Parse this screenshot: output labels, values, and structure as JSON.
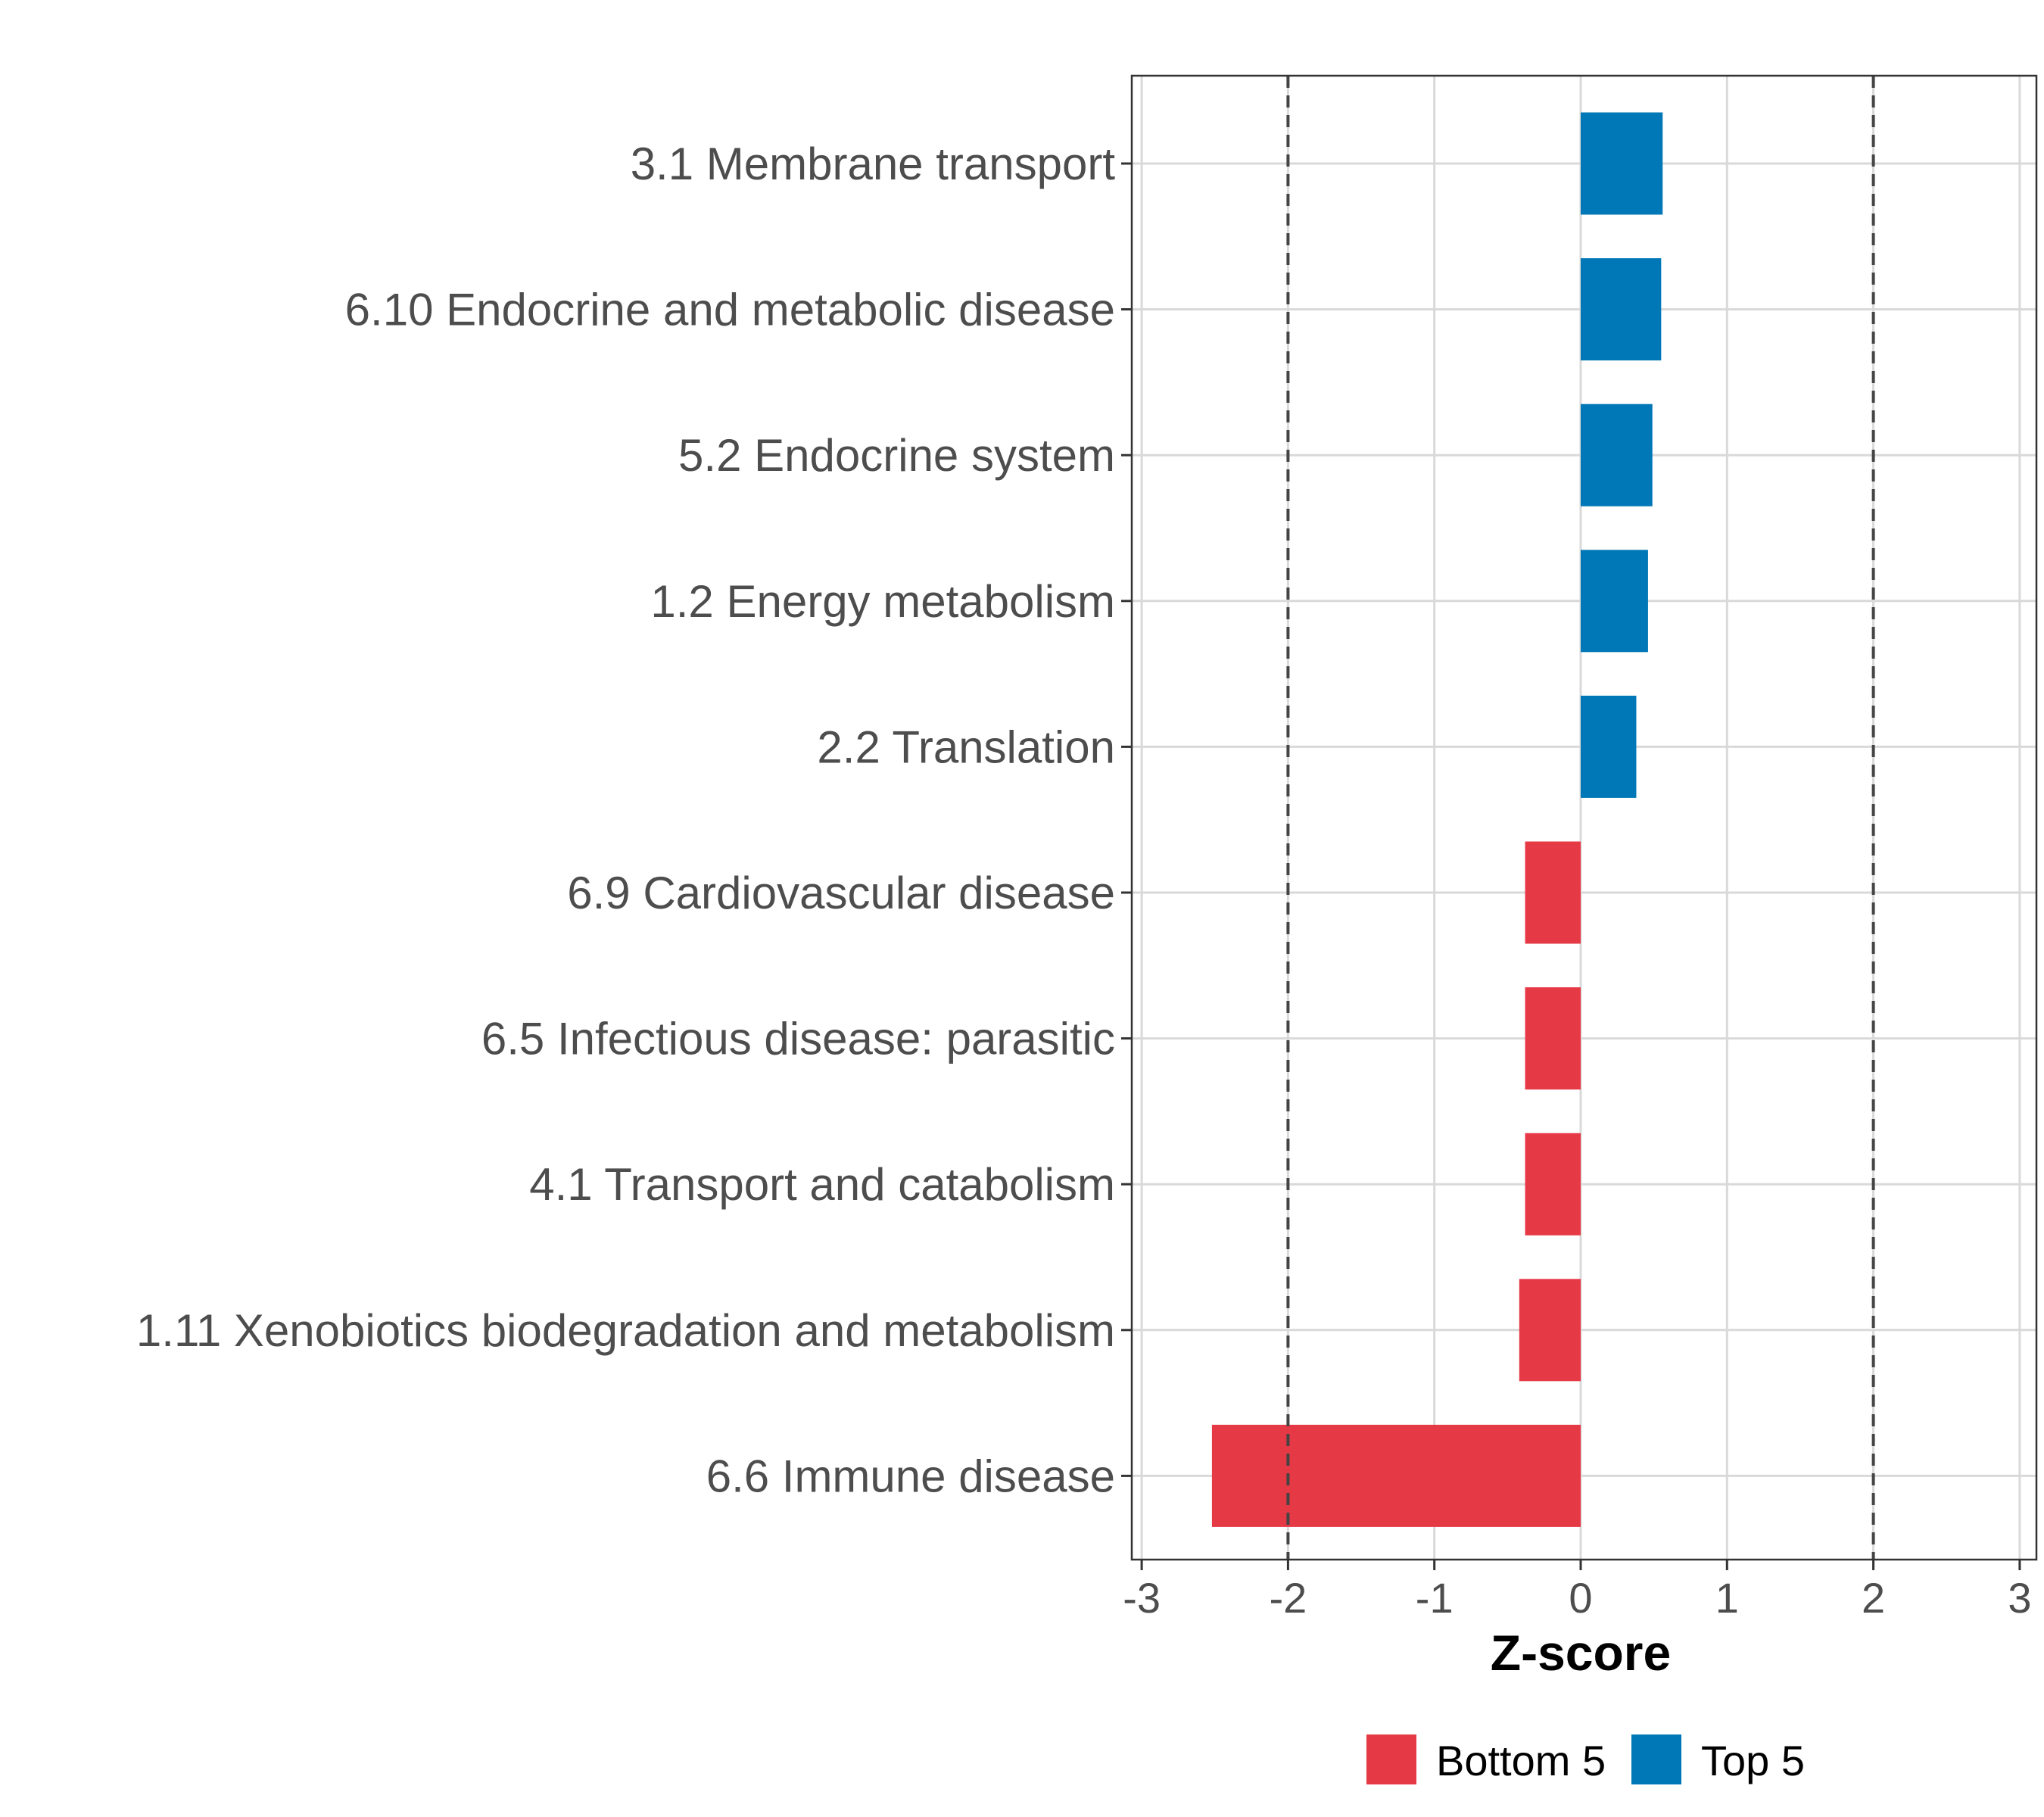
{
  "chart_data": {
    "type": "bar",
    "orientation": "horizontal",
    "title": "",
    "xlabel": "Z-score",
    "ylabel": "",
    "xlim": [
      -3,
      3
    ],
    "xticks": [
      "-3",
      "-2",
      "-1",
      "0",
      "1",
      "2",
      "3"
    ],
    "xtick_values": [
      -3,
      -2,
      -1,
      0,
      1,
      2,
      3
    ],
    "reference_lines": [
      -2,
      2
    ],
    "grid": true,
    "categories": [
      "3.1 Membrane transport",
      "6.10 Endocrine and metabolic disease",
      "5.2 Endocrine system",
      "1.2 Energy metabolism",
      "2.2 Translation",
      "6.9 Cardiovascular disease",
      "6.5 Infectious disease: parasitic",
      "4.1 Transport and catabolism",
      "1.11 Xenobiotics biodegradation and metabolism",
      "6.6 Immune disease"
    ],
    "values": [
      0.56,
      0.55,
      0.49,
      0.46,
      0.38,
      -0.38,
      -0.38,
      -0.38,
      -0.42,
      -2.52
    ],
    "groups": [
      "Top 5",
      "Top 5",
      "Top 5",
      "Top 5",
      "Top 5",
      "Bottom 5",
      "Bottom 5",
      "Bottom 5",
      "Bottom 5",
      "Bottom 5"
    ],
    "legend": {
      "placement": "bottom",
      "items": [
        {
          "label": "Bottom 5",
          "color": "#e63946"
        },
        {
          "label": "Top 5",
          "color": "#0077b6"
        }
      ]
    },
    "colors": {
      "Top 5": "#0077b6",
      "Bottom 5": "#e63946"
    }
  }
}
